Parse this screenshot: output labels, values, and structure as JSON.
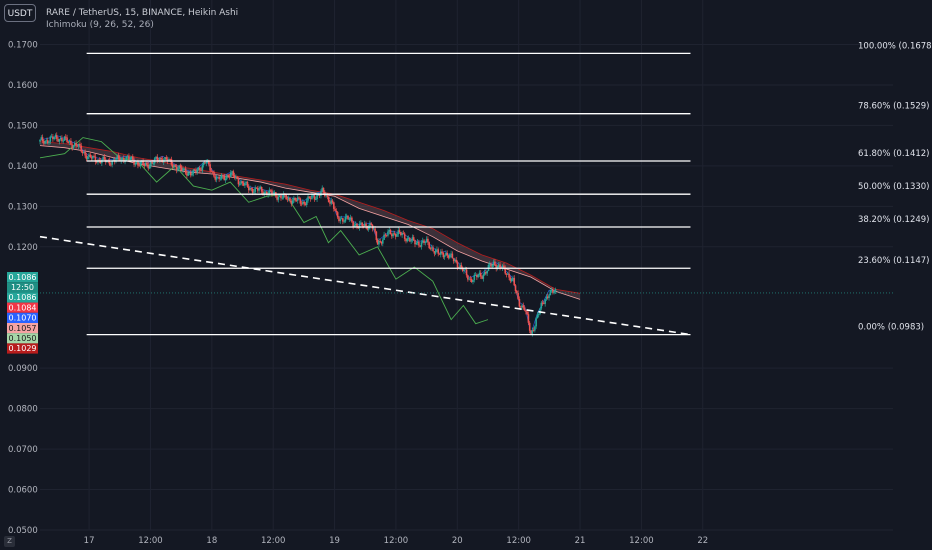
{
  "header": {
    "currency": "USDT",
    "title": "RARE / TetherUS, 15, BINANCE, Heikin Ashi",
    "indicator": "Ichimoku (9, 26, 52, 26)"
  },
  "colors": {
    "background": "#141823",
    "grid": "#1f2330",
    "axis_text": "#b2b5be",
    "fib_line": "#ffffff",
    "trend_line": "#ffffff",
    "candle_up": "#26a69a",
    "candle_down": "#ef5350",
    "lagging_span": "#4caf50",
    "leading_span": "#f5a3a3",
    "conversion_line": "#2962ff",
    "base_line": "#b71c1c"
  },
  "chart_data": {
    "type": "line",
    "ylim": [
      0.05,
      0.181
    ],
    "xlim": [
      -0.4,
      6.55
    ],
    "y_ticks": [
      {
        "value": 0.17,
        "label": "0.1700"
      },
      {
        "value": 0.16,
        "label": "0.1600"
      },
      {
        "value": 0.15,
        "label": "0.1500"
      },
      {
        "value": 0.14,
        "label": "0.1400"
      },
      {
        "value": 0.13,
        "label": "0.1300"
      },
      {
        "value": 0.12,
        "label": "0.1200"
      },
      {
        "value": 0.09,
        "label": "0.0900"
      },
      {
        "value": 0.08,
        "label": "0.0800"
      },
      {
        "value": 0.07,
        "label": "0.0700"
      },
      {
        "value": 0.06,
        "label": "0.0600"
      },
      {
        "value": 0.05,
        "label": "0.0500"
      }
    ],
    "x_ticks": [
      {
        "value": 0,
        "label": "17"
      },
      {
        "value": 0.5,
        "label": "12:00"
      },
      {
        "value": 1,
        "label": "18"
      },
      {
        "value": 1.5,
        "label": "12:00"
      },
      {
        "value": 2,
        "label": "19"
      },
      {
        "value": 2.5,
        "label": "12:00"
      },
      {
        "value": 3,
        "label": "20"
      },
      {
        "value": 3.5,
        "label": "12:00"
      },
      {
        "value": 4,
        "label": "21"
      },
      {
        "value": 4.5,
        "label": "12:00"
      },
      {
        "value": 5,
        "label": "22"
      }
    ],
    "fib_levels": [
      {
        "value": 0.1678,
        "label": "100.00% (0.1678)"
      },
      {
        "value": 0.1529,
        "label": "78.60% (0.1529)"
      },
      {
        "value": 0.1412,
        "label": "61.80% (0.1412)"
      },
      {
        "value": 0.133,
        "label": "50.00% (0.1330)"
      },
      {
        "value": 0.1249,
        "label": "38.20% (0.1249)"
      },
      {
        "value": 0.1147,
        "label": "23.60% (0.1147)"
      },
      {
        "value": 0.0983,
        "label": "0.00% (0.0983)"
      }
    ],
    "fib_x_range": [
      -0.02,
      4.9
    ],
    "trend_line": {
      "x": [
        -0.4,
        4.9
      ],
      "y": [
        0.1225,
        0.0983
      ]
    },
    "price_badges": [
      {
        "value": 0.1086,
        "label": "0.1086",
        "color": "#26a69a"
      },
      {
        "value": 0.10835,
        "label": "12:50",
        "color": "#1f8f84"
      },
      {
        "value": 0.1086,
        "label": "0.1086",
        "color": "#26a69a"
      },
      {
        "value": 0.1084,
        "label": "0.1084",
        "color": "#f23645"
      },
      {
        "value": 0.107,
        "label": "0.1070",
        "color": "#2962ff"
      },
      {
        "value": 0.1057,
        "label": "0.1057",
        "color": "#f5a3a3"
      },
      {
        "value": 0.105,
        "label": "0.1050",
        "color": "#a5d6a7"
      },
      {
        "value": 0.1029,
        "label": "0.1029",
        "color": "#b71c1c"
      }
    ],
    "current_price": 0.1086,
    "series": [
      {
        "name": "price",
        "x": [
          -0.4,
          -0.25,
          -0.1,
          0.0,
          0.15,
          0.3,
          0.45,
          0.6,
          0.75,
          0.85,
          0.95,
          1.05,
          1.15,
          1.3,
          1.45,
          1.6,
          1.75,
          1.9,
          1.98,
          2.02,
          2.1,
          2.2,
          2.3,
          2.35,
          2.45,
          2.55,
          2.65,
          2.75,
          2.85,
          2.9,
          3.0,
          3.1,
          3.2,
          3.3,
          3.35,
          3.45,
          3.5,
          3.55,
          3.6,
          3.65,
          3.7,
          3.75,
          3.8
        ],
        "y": [
          0.146,
          0.147,
          0.145,
          0.142,
          0.141,
          0.142,
          0.14,
          0.142,
          0.139,
          0.138,
          0.141,
          0.1365,
          0.138,
          0.1345,
          0.1335,
          0.132,
          0.131,
          0.1335,
          0.131,
          0.127,
          0.127,
          0.125,
          0.1255,
          0.121,
          0.1235,
          0.123,
          0.121,
          0.121,
          0.118,
          0.1185,
          0.116,
          0.112,
          0.113,
          0.116,
          0.115,
          0.112,
          0.106,
          0.105,
          0.098,
          0.103,
          0.106,
          0.109,
          0.1086
        ]
      },
      {
        "name": "leading span",
        "x": [
          -0.4,
          -0.2,
          0.0,
          0.2,
          0.4,
          0.6,
          0.8,
          1.0,
          1.2,
          1.4,
          1.6,
          1.8,
          2.0,
          2.2,
          2.4,
          2.6,
          2.8,
          3.0,
          3.2,
          3.4,
          3.6,
          3.8,
          4.0
        ],
        "y": [
          0.145,
          0.1445,
          0.1435,
          0.142,
          0.1405,
          0.1395,
          0.1385,
          0.138,
          0.137,
          0.136,
          0.1345,
          0.1335,
          0.1325,
          0.1295,
          0.1275,
          0.1255,
          0.1225,
          0.119,
          0.1165,
          0.1145,
          0.1125,
          0.109,
          0.107
        ]
      },
      {
        "name": "leading span b",
        "x": [
          -0.4,
          -0.2,
          0.0,
          0.2,
          0.4,
          0.6,
          0.8,
          1.0,
          1.2,
          1.4,
          1.6,
          1.8,
          2.0,
          2.2,
          2.4,
          2.6,
          2.8,
          3.0,
          3.2,
          3.4,
          3.6,
          3.8,
          4.0
        ],
        "y": [
          0.146,
          0.1455,
          0.1445,
          0.1435,
          0.142,
          0.141,
          0.1395,
          0.1385,
          0.1375,
          0.1365,
          0.1355,
          0.134,
          0.133,
          0.131,
          0.129,
          0.1265,
          0.1245,
          0.121,
          0.118,
          0.116,
          0.113,
          0.1095,
          0.1085
        ]
      },
      {
        "name": "lagging span",
        "x": [
          -0.4,
          -0.2,
          -0.05,
          0.1,
          0.25,
          0.4,
          0.55,
          0.7,
          0.85,
          1.0,
          1.15,
          1.3,
          1.45,
          1.6,
          1.75,
          1.85,
          1.95,
          2.05,
          2.2,
          2.35,
          2.5,
          2.65,
          2.8,
          2.95,
          3.05,
          3.15,
          3.25
        ],
        "y": [
          0.142,
          0.143,
          0.147,
          0.146,
          0.142,
          0.141,
          0.136,
          0.14,
          0.135,
          0.134,
          0.136,
          0.131,
          0.1325,
          0.133,
          0.126,
          0.1275,
          0.121,
          0.124,
          0.118,
          0.12,
          0.112,
          0.115,
          0.1115,
          0.102,
          0.1055,
          0.101,
          0.102
        ]
      }
    ]
  }
}
